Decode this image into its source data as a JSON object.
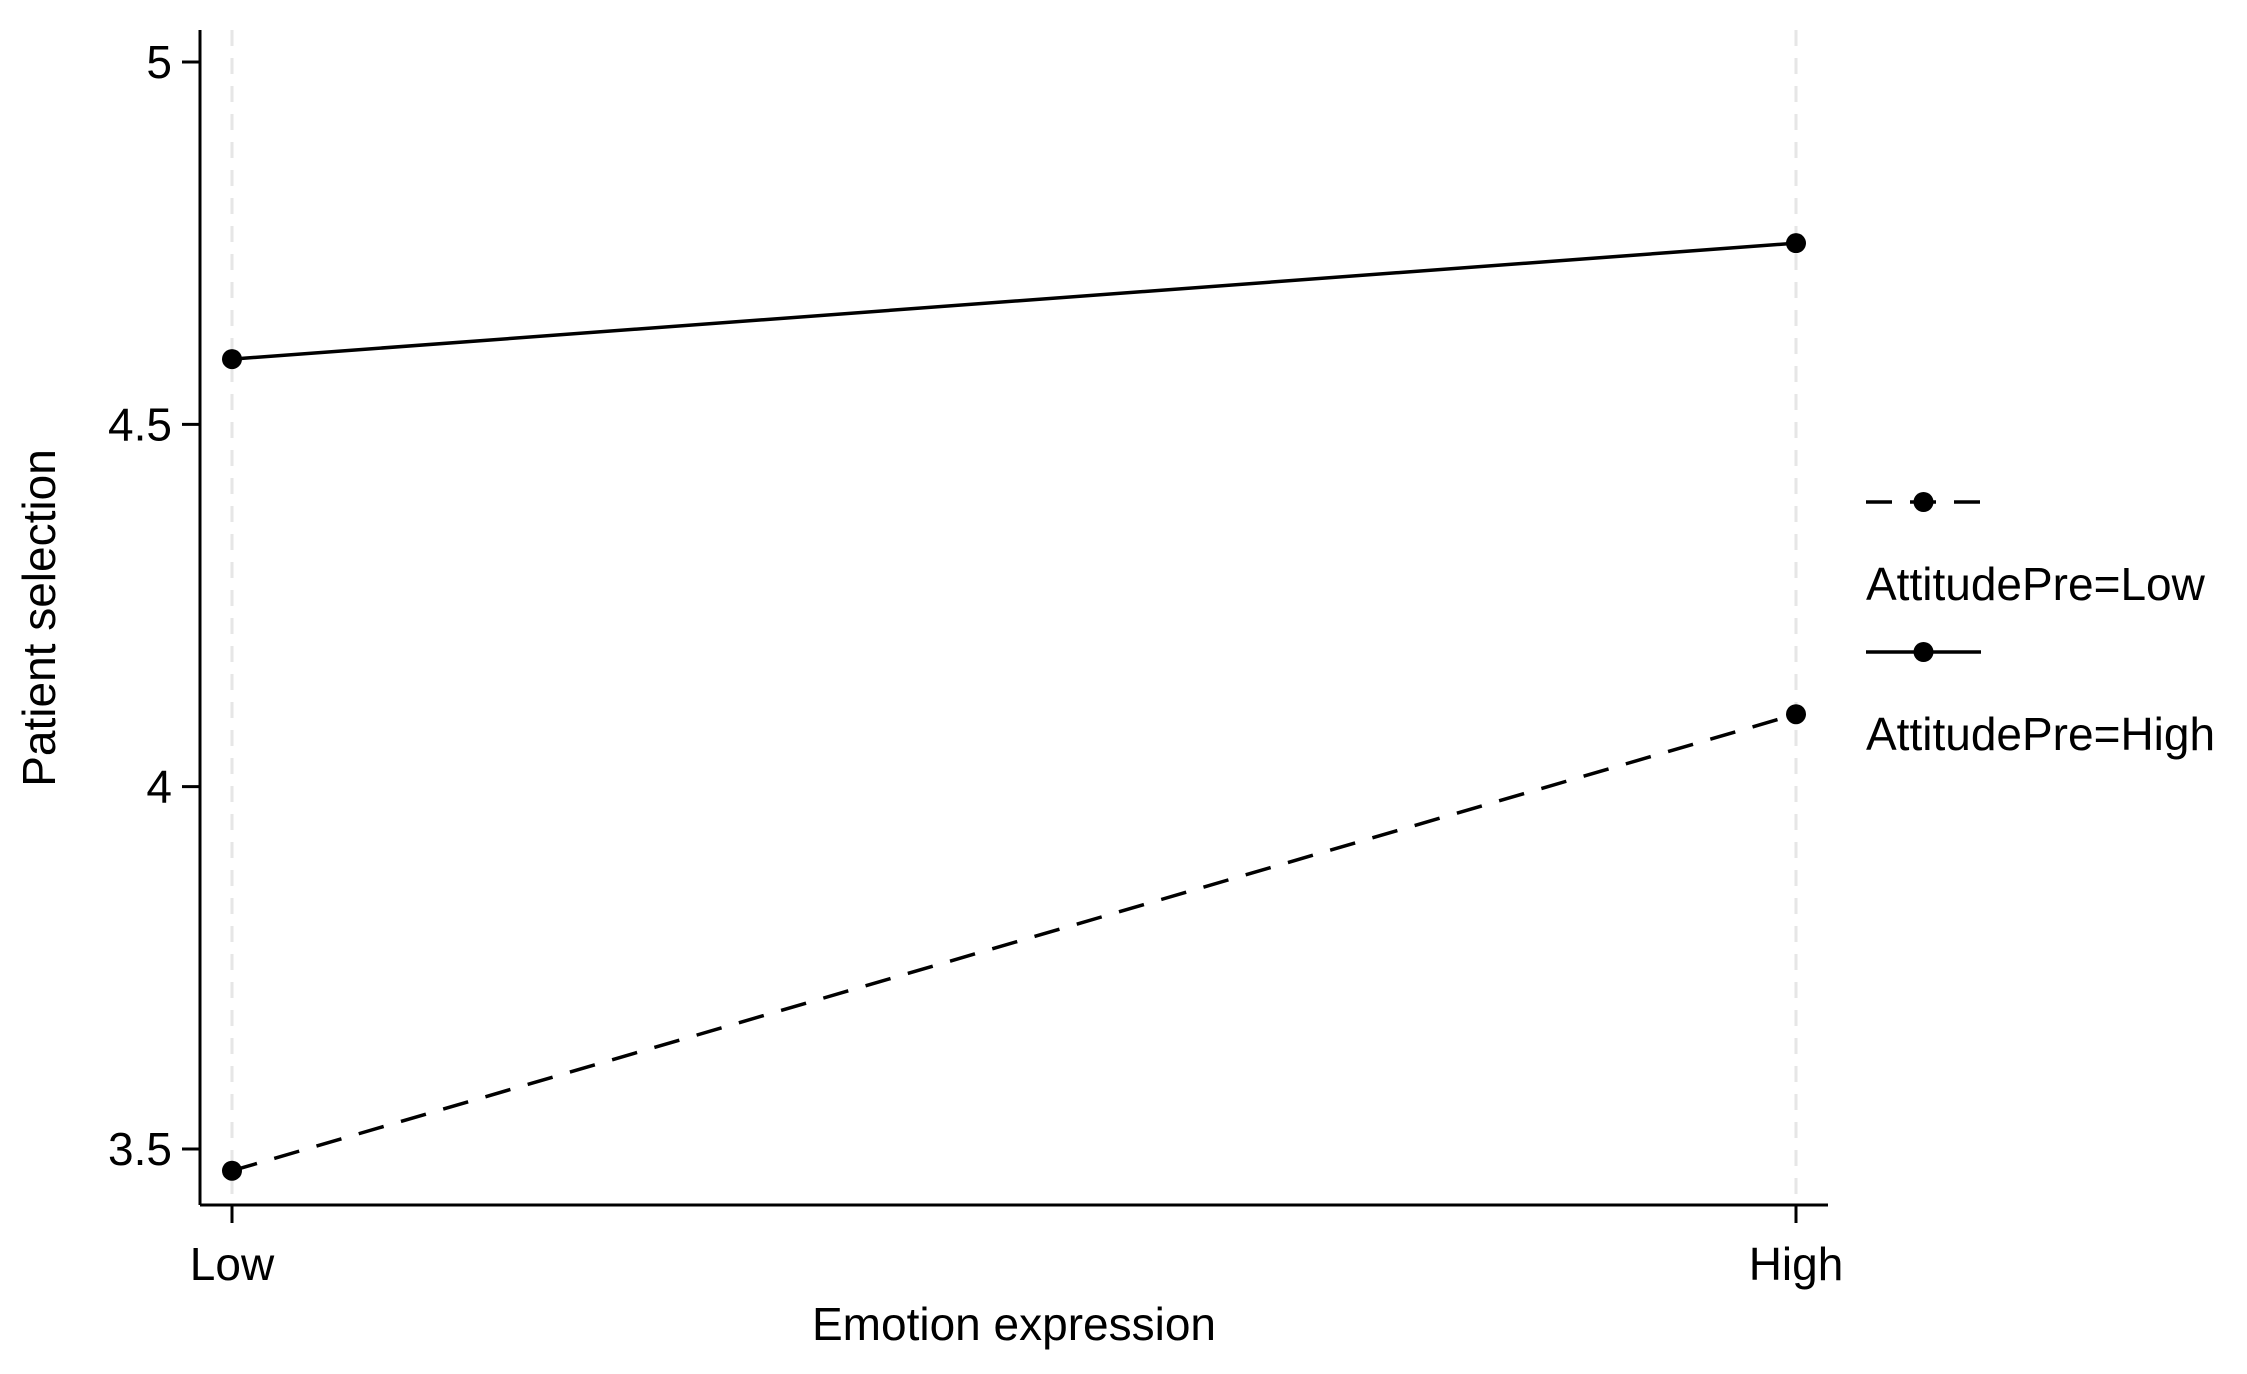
{
  "chart_data": {
    "type": "line",
    "title": "",
    "xlabel": "Emotion expression",
    "ylabel": "Patient selection",
    "categories": [
      "Low",
      "High"
    ],
    "yticks": [
      3.5,
      4,
      4.5,
      5
    ],
    "ytick_labels": [
      "3.5",
      "4",
      "4.5",
      "5"
    ],
    "ylim": [
      3.42,
      5.05
    ],
    "grid": "vertical dashed at categories",
    "legend_position": "right",
    "series": [
      {
        "name": "AttitudePre=Low",
        "values": [
          3.47,
          4.1
        ],
        "line_style": "dashed",
        "marker": "circle",
        "color": "#000000"
      },
      {
        "name": "AttitudePre=High",
        "values": [
          4.59,
          4.75
        ],
        "line_style": "solid",
        "marker": "circle",
        "color": "#000000"
      }
    ],
    "colors": {
      "axis": "#000000",
      "grid": "#e6e6e6",
      "background": "#ffffff"
    }
  }
}
